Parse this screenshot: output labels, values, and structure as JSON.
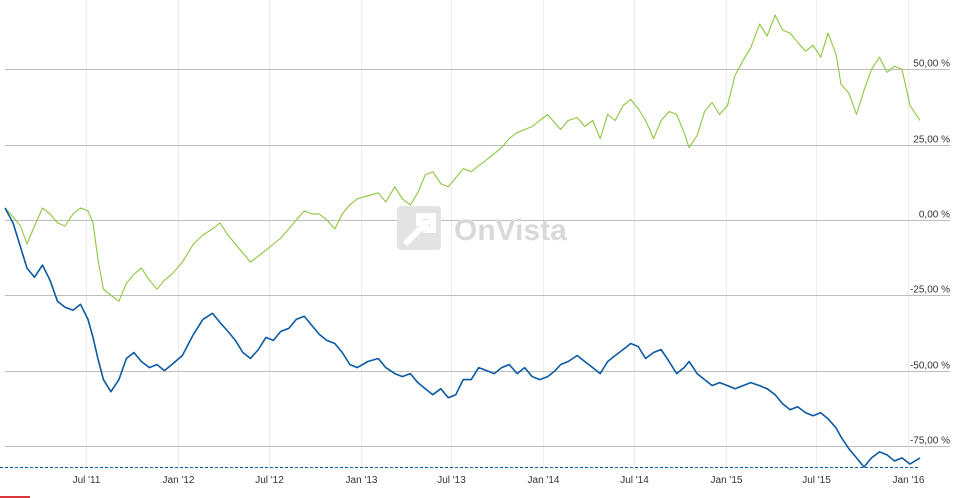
{
  "watermark": {
    "text": "OnVista"
  },
  "colors": {
    "series_green": "#8dc63f",
    "series_blue": "#0b5aa2",
    "grid": "#bdbdbd",
    "vgrid": "#ececec",
    "baseline": "#0b5aa2",
    "watermark": "#d9d9d9"
  },
  "chart_data": {
    "type": "line",
    "title": "",
    "xlabel": "",
    "ylabel": "",
    "grid": true,
    "legend": "none",
    "xlim": [
      "2011-01-20",
      "2016-01-25"
    ],
    "ylim": [
      -83,
      72
    ],
    "x_ticks": [
      {
        "date": "2011-07-01",
        "label": "Jul '11"
      },
      {
        "date": "2012-01-01",
        "label": "Jan '12"
      },
      {
        "date": "2012-07-01",
        "label": "Jul '12"
      },
      {
        "date": "2013-01-01",
        "label": "Jan '13"
      },
      {
        "date": "2013-07-01",
        "label": "Jul '13"
      },
      {
        "date": "2014-01-01",
        "label": "Jan '14"
      },
      {
        "date": "2014-07-01",
        "label": "Jul '14"
      },
      {
        "date": "2015-01-01",
        "label": "Jan '15"
      },
      {
        "date": "2015-07-01",
        "label": "Jul '15"
      },
      {
        "date": "2016-01-01",
        "label": "Jan '16"
      }
    ],
    "y_ticks": [
      {
        "value": 50,
        "label": "50,00 %"
      },
      {
        "value": 25,
        "label": "25,00 %"
      },
      {
        "value": 0,
        "label": "0,00 %"
      },
      {
        "value": -25,
        "label": "-25,00 %"
      },
      {
        "value": -50,
        "label": "-50,00 %"
      },
      {
        "value": -75,
        "label": "-75,00 %"
      }
    ],
    "series": [
      {
        "color": "#8dc63f",
        "points": [
          [
            "2011-01-20",
            4
          ],
          [
            "2011-02-05",
            1
          ],
          [
            "2011-02-20",
            -2
          ],
          [
            "2011-03-05",
            -8
          ],
          [
            "2011-03-20",
            -2
          ],
          [
            "2011-04-05",
            4
          ],
          [
            "2011-04-20",
            2
          ],
          [
            "2011-05-05",
            -1
          ],
          [
            "2011-05-20",
            -2
          ],
          [
            "2011-06-05",
            2
          ],
          [
            "2011-06-20",
            4
          ],
          [
            "2011-07-05",
            3
          ],
          [
            "2011-07-15",
            -1
          ],
          [
            "2011-07-25",
            -13
          ],
          [
            "2011-08-05",
            -23
          ],
          [
            "2011-08-20",
            -25
          ],
          [
            "2011-09-05",
            -27
          ],
          [
            "2011-09-20",
            -21
          ],
          [
            "2011-10-05",
            -18
          ],
          [
            "2011-10-20",
            -16
          ],
          [
            "2011-11-05",
            -20
          ],
          [
            "2011-11-20",
            -23
          ],
          [
            "2011-12-05",
            -20
          ],
          [
            "2011-12-20",
            -18
          ],
          [
            "2012-01-10",
            -14
          ],
          [
            "2012-02-01",
            -8
          ],
          [
            "2012-02-20",
            -5
          ],
          [
            "2012-03-10",
            -3
          ],
          [
            "2012-03-25",
            -1
          ],
          [
            "2012-04-10",
            -5
          ],
          [
            "2012-04-25",
            -8
          ],
          [
            "2012-05-10",
            -11
          ],
          [
            "2012-05-25",
            -14
          ],
          [
            "2012-06-10",
            -12
          ],
          [
            "2012-06-25",
            -10
          ],
          [
            "2012-07-10",
            -8
          ],
          [
            "2012-07-25",
            -6
          ],
          [
            "2012-08-10",
            -3
          ],
          [
            "2012-08-25",
            0
          ],
          [
            "2012-09-10",
            3
          ],
          [
            "2012-09-25",
            2
          ],
          [
            "2012-10-10",
            2
          ],
          [
            "2012-10-25",
            0
          ],
          [
            "2012-11-10",
            -3
          ],
          [
            "2012-11-25",
            2
          ],
          [
            "2012-12-10",
            5
          ],
          [
            "2012-12-25",
            7
          ],
          [
            "2013-01-15",
            8
          ],
          [
            "2013-02-05",
            9
          ],
          [
            "2013-02-20",
            6
          ],
          [
            "2013-03-10",
            11
          ],
          [
            "2013-03-25",
            7
          ],
          [
            "2013-04-10",
            5
          ],
          [
            "2013-04-25",
            9
          ],
          [
            "2013-05-10",
            15
          ],
          [
            "2013-05-25",
            16
          ],
          [
            "2013-06-10",
            12
          ],
          [
            "2013-06-25",
            11
          ],
          [
            "2013-07-10",
            14
          ],
          [
            "2013-07-25",
            17
          ],
          [
            "2013-08-10",
            16
          ],
          [
            "2013-08-25",
            18
          ],
          [
            "2013-09-10",
            20
          ],
          [
            "2013-09-25",
            22
          ],
          [
            "2013-10-10",
            24
          ],
          [
            "2013-10-25",
            27
          ],
          [
            "2013-11-10",
            29
          ],
          [
            "2013-11-25",
            30
          ],
          [
            "2013-12-10",
            31
          ],
          [
            "2013-12-25",
            33
          ],
          [
            "2014-01-10",
            35
          ],
          [
            "2014-01-25",
            32
          ],
          [
            "2014-02-05",
            30
          ],
          [
            "2014-02-20",
            33
          ],
          [
            "2014-03-10",
            34
          ],
          [
            "2014-03-25",
            31
          ],
          [
            "2014-04-10",
            33
          ],
          [
            "2014-04-25",
            27
          ],
          [
            "2014-05-10",
            35
          ],
          [
            "2014-05-25",
            33
          ],
          [
            "2014-06-10",
            38
          ],
          [
            "2014-06-25",
            40
          ],
          [
            "2014-07-10",
            37
          ],
          [
            "2014-07-25",
            33
          ],
          [
            "2014-08-10",
            27
          ],
          [
            "2014-08-25",
            33
          ],
          [
            "2014-09-10",
            36
          ],
          [
            "2014-09-25",
            35
          ],
          [
            "2014-10-10",
            29
          ],
          [
            "2014-10-20",
            24
          ],
          [
            "2014-11-05",
            28
          ],
          [
            "2014-11-20",
            36
          ],
          [
            "2014-12-05",
            39
          ],
          [
            "2014-12-20",
            35
          ],
          [
            "2015-01-05",
            38
          ],
          [
            "2015-01-20",
            48
          ],
          [
            "2015-02-05",
            53
          ],
          [
            "2015-02-20",
            57
          ],
          [
            "2015-03-10",
            65
          ],
          [
            "2015-03-25",
            61
          ],
          [
            "2015-04-10",
            68
          ],
          [
            "2015-04-25",
            63
          ],
          [
            "2015-05-10",
            62
          ],
          [
            "2015-05-25",
            59
          ],
          [
            "2015-06-10",
            56
          ],
          [
            "2015-06-25",
            58
          ],
          [
            "2015-07-10",
            54
          ],
          [
            "2015-07-25",
            62
          ],
          [
            "2015-08-10",
            55
          ],
          [
            "2015-08-20",
            45
          ],
          [
            "2015-09-05",
            42
          ],
          [
            "2015-09-20",
            35
          ],
          [
            "2015-10-05",
            43
          ],
          [
            "2015-10-20",
            50
          ],
          [
            "2015-11-05",
            54
          ],
          [
            "2015-11-20",
            49
          ],
          [
            "2015-12-05",
            51
          ],
          [
            "2015-12-20",
            50
          ],
          [
            "2016-01-05",
            38
          ],
          [
            "2016-01-25",
            33
          ]
        ]
      },
      {
        "color": "#0b5aa2",
        "points": [
          [
            "2011-01-20",
            4
          ],
          [
            "2011-02-05",
            -1
          ],
          [
            "2011-02-20",
            -9
          ],
          [
            "2011-03-05",
            -16
          ],
          [
            "2011-03-20",
            -19
          ],
          [
            "2011-04-05",
            -15
          ],
          [
            "2011-04-20",
            -20
          ],
          [
            "2011-05-05",
            -27
          ],
          [
            "2011-05-20",
            -29
          ],
          [
            "2011-06-05",
            -30
          ],
          [
            "2011-06-20",
            -28
          ],
          [
            "2011-07-05",
            -33
          ],
          [
            "2011-07-15",
            -39
          ],
          [
            "2011-07-25",
            -46
          ],
          [
            "2011-08-05",
            -53
          ],
          [
            "2011-08-20",
            -57
          ],
          [
            "2011-09-05",
            -53
          ],
          [
            "2011-09-20",
            -46
          ],
          [
            "2011-10-05",
            -44
          ],
          [
            "2011-10-20",
            -47
          ],
          [
            "2011-11-05",
            -49
          ],
          [
            "2011-11-20",
            -48
          ],
          [
            "2011-12-05",
            -50
          ],
          [
            "2011-12-20",
            -48
          ],
          [
            "2012-01-10",
            -45
          ],
          [
            "2012-02-01",
            -38
          ],
          [
            "2012-02-20",
            -33
          ],
          [
            "2012-03-10",
            -31
          ],
          [
            "2012-03-25",
            -34
          ],
          [
            "2012-04-10",
            -37
          ],
          [
            "2012-04-25",
            -40
          ],
          [
            "2012-05-10",
            -44
          ],
          [
            "2012-05-25",
            -46
          ],
          [
            "2012-06-10",
            -43
          ],
          [
            "2012-06-25",
            -39
          ],
          [
            "2012-07-10",
            -40
          ],
          [
            "2012-07-25",
            -37
          ],
          [
            "2012-08-10",
            -36
          ],
          [
            "2012-08-25",
            -33
          ],
          [
            "2012-09-10",
            -32
          ],
          [
            "2012-09-25",
            -35
          ],
          [
            "2012-10-10",
            -38
          ],
          [
            "2012-10-25",
            -40
          ],
          [
            "2012-11-10",
            -41
          ],
          [
            "2012-11-25",
            -44
          ],
          [
            "2012-12-10",
            -48
          ],
          [
            "2012-12-25",
            -49
          ],
          [
            "2013-01-15",
            -47
          ],
          [
            "2013-02-05",
            -46
          ],
          [
            "2013-02-20",
            -49
          ],
          [
            "2013-03-10",
            -51
          ],
          [
            "2013-03-25",
            -52
          ],
          [
            "2013-04-10",
            -51
          ],
          [
            "2013-04-25",
            -54
          ],
          [
            "2013-05-10",
            -56
          ],
          [
            "2013-05-25",
            -58
          ],
          [
            "2013-06-10",
            -56
          ],
          [
            "2013-06-25",
            -59
          ],
          [
            "2013-07-10",
            -58
          ],
          [
            "2013-07-25",
            -53
          ],
          [
            "2013-08-10",
            -53
          ],
          [
            "2013-08-25",
            -49
          ],
          [
            "2013-09-10",
            -50
          ],
          [
            "2013-09-25",
            -51
          ],
          [
            "2013-10-10",
            -49
          ],
          [
            "2013-10-25",
            -48
          ],
          [
            "2013-11-10",
            -51
          ],
          [
            "2013-11-25",
            -49
          ],
          [
            "2013-12-10",
            -52
          ],
          [
            "2013-12-25",
            -53
          ],
          [
            "2014-01-10",
            -52
          ],
          [
            "2014-01-25",
            -50
          ],
          [
            "2014-02-05",
            -48
          ],
          [
            "2014-02-20",
            -47
          ],
          [
            "2014-03-10",
            -45
          ],
          [
            "2014-03-25",
            -47
          ],
          [
            "2014-04-10",
            -49
          ],
          [
            "2014-04-25",
            -51
          ],
          [
            "2014-05-10",
            -47
          ],
          [
            "2014-05-25",
            -45
          ],
          [
            "2014-06-10",
            -43
          ],
          [
            "2014-06-25",
            -41
          ],
          [
            "2014-07-10",
            -42
          ],
          [
            "2014-07-25",
            -46
          ],
          [
            "2014-08-10",
            -44
          ],
          [
            "2014-08-25",
            -43
          ],
          [
            "2014-09-10",
            -47
          ],
          [
            "2014-09-25",
            -51
          ],
          [
            "2014-10-10",
            -49
          ],
          [
            "2014-10-20",
            -47
          ],
          [
            "2014-11-05",
            -51
          ],
          [
            "2014-11-20",
            -53
          ],
          [
            "2014-12-05",
            -55
          ],
          [
            "2014-12-20",
            -54
          ],
          [
            "2015-01-05",
            -55
          ],
          [
            "2015-01-20",
            -56
          ],
          [
            "2015-02-05",
            -55
          ],
          [
            "2015-02-20",
            -54
          ],
          [
            "2015-03-10",
            -55
          ],
          [
            "2015-03-25",
            -56
          ],
          [
            "2015-04-10",
            -58
          ],
          [
            "2015-04-25",
            -61
          ],
          [
            "2015-05-10",
            -63
          ],
          [
            "2015-05-25",
            -62
          ],
          [
            "2015-06-10",
            -64
          ],
          [
            "2015-06-25",
            -65
          ],
          [
            "2015-07-10",
            -64
          ],
          [
            "2015-07-25",
            -66
          ],
          [
            "2015-08-10",
            -69
          ],
          [
            "2015-08-20",
            -72
          ],
          [
            "2015-09-05",
            -76
          ],
          [
            "2015-09-20",
            -79
          ],
          [
            "2015-10-05",
            -82
          ],
          [
            "2015-10-20",
            -79
          ],
          [
            "2015-11-05",
            -77
          ],
          [
            "2015-11-20",
            -78
          ],
          [
            "2015-12-05",
            -80
          ],
          [
            "2015-12-20",
            -79
          ],
          [
            "2016-01-05",
            -81
          ],
          [
            "2016-01-25",
            -79
          ]
        ]
      }
    ],
    "reference_line": {
      "value": -82,
      "style": "dashed",
      "color": "#0b5aa2"
    }
  }
}
